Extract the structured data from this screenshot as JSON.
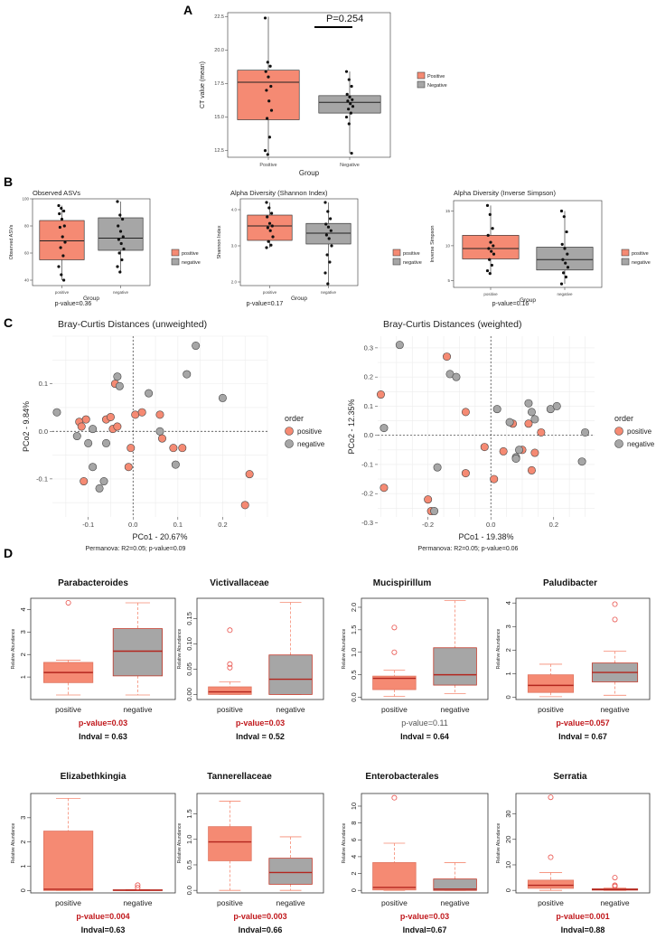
{
  "colors": {
    "positive": "#f58a73",
    "negative": "#a6a6a6",
    "red_text": "#c0181c",
    "median_red": "#b3261e",
    "whisker_red": "#f58a73",
    "outlier_red": "#e8504a",
    "median_dark": "#333333"
  },
  "panel_labels": [
    "A",
    "B",
    "C",
    "D"
  ],
  "chart_data": [
    {
      "id": "A",
      "type": "box",
      "title": "",
      "xlabel": "Group",
      "ylabel": "CT value (mean)",
      "categories": [
        "Positive",
        "Negative"
      ],
      "ylim": [
        12,
        22.8
      ],
      "yticks": [
        12.5,
        15.0,
        17.5,
        20.0,
        22.5
      ],
      "yticklabels": [
        "12.5",
        "15.0",
        "17.5",
        "20.0",
        "22.5"
      ],
      "annotation": "P=0.254",
      "legend": [
        "Positive",
        "Negative"
      ],
      "boxes": [
        {
          "q1": 14.8,
          "median": 17.6,
          "q3": 18.5,
          "lo": 12.2,
          "hi": 22.5,
          "points": [
            22.4,
            19.1,
            18.8,
            18.4,
            18.0,
            17.3,
            17.0,
            16.2,
            15.5,
            14.9,
            13.5,
            12.5,
            12.2
          ]
        },
        {
          "q1": 15.3,
          "median": 16.1,
          "q3": 16.6,
          "lo": 12.3,
          "hi": 18.4,
          "points": [
            18.4,
            17.8,
            17.3,
            16.7,
            16.5,
            16.3,
            16.2,
            16.0,
            15.8,
            15.6,
            15.3,
            15.0,
            14.5,
            12.3
          ]
        }
      ]
    },
    {
      "id": "B1",
      "type": "box",
      "title": "Observed ASVs",
      "xlabel": "Group",
      "ylabel": "Observed ASVs",
      "footer": "p-value=0.36",
      "categories": [
        "positive",
        "negative"
      ],
      "ylim": [
        36,
        100
      ],
      "yticks": [
        40,
        60,
        80,
        100
      ],
      "yticklabels": [
        "40",
        "60",
        "80",
        "100"
      ],
      "legend": [
        "positive",
        "negative"
      ],
      "boxes": [
        {
          "q1": 55,
          "median": 69,
          "q3": 84,
          "lo": 40,
          "hi": 95,
          "points": [
            95,
            93,
            91,
            89,
            85,
            80,
            79,
            72,
            68,
            64,
            58,
            50,
            44,
            40
          ]
        },
        {
          "q1": 62,
          "median": 71,
          "q3": 86,
          "lo": 46,
          "hi": 98,
          "points": [
            98,
            88,
            85,
            80,
            76,
            72,
            70,
            67,
            63,
            60,
            55,
            50,
            46
          ]
        }
      ]
    },
    {
      "id": "B2",
      "type": "box",
      "title": "Alpha Diversity (Shannon Index)",
      "xlabel": "Group",
      "ylabel": "Shannon Index",
      "footer": "p-value=0.17",
      "categories": [
        "positive",
        "negative"
      ],
      "ylim": [
        1.9,
        4.3
      ],
      "yticks": [
        2.0,
        3.0,
        4.0
      ],
      "yticklabels": [
        "2.0",
        "3.0",
        "4.0"
      ],
      "legend": [
        "positive",
        "negative"
      ],
      "boxes": [
        {
          "q1": 3.15,
          "median": 3.55,
          "q3": 3.85,
          "lo": 2.95,
          "hi": 4.2,
          "points": [
            4.2,
            4.05,
            3.9,
            3.8,
            3.62,
            3.55,
            3.5,
            3.42,
            3.25,
            3.12,
            3.02,
            2.95
          ]
        },
        {
          "q1": 3.05,
          "median": 3.35,
          "q3": 3.62,
          "lo": 1.95,
          "hi": 4.2,
          "points": [
            4.2,
            3.95,
            3.75,
            3.6,
            3.52,
            3.42,
            3.3,
            3.2,
            3.0,
            2.75,
            2.55,
            2.25,
            1.95
          ]
        }
      ]
    },
    {
      "id": "B3",
      "type": "box",
      "title": "Alpha Diversity (Inverse Simpson)",
      "xlabel": "Group",
      "ylabel": "Inverse Simpson",
      "footer": "p-value=0.16",
      "categories": [
        "positive",
        "negative"
      ],
      "ylim": [
        4,
        16.5
      ],
      "yticks": [
        5,
        10,
        15
      ],
      "yticklabels": [
        "5",
        "10",
        "15"
      ],
      "legend": [
        "positive",
        "negative"
      ],
      "boxes": [
        {
          "q1": 8.1,
          "median": 9.6,
          "q3": 11.5,
          "lo": 6.0,
          "hi": 15.8,
          "points": [
            15.8,
            14.5,
            12.5,
            11.5,
            10.5,
            10.0,
            9.6,
            9.2,
            8.8,
            8.0,
            7.2,
            6.4,
            6.0
          ]
        },
        {
          "q1": 6.5,
          "median": 8.0,
          "q3": 9.8,
          "lo": 4.5,
          "hi": 15.0,
          "points": [
            15.0,
            14.2,
            12.0,
            10.2,
            9.6,
            8.8,
            8.0,
            7.5,
            6.9,
            6.1,
            5.5,
            4.5
          ]
        }
      ]
    },
    {
      "id": "C1",
      "type": "scatter",
      "title": "Bray-Curtis Distances (unweighted)",
      "xlabel": "PCo1 - 20.67%",
      "ylabel": "PCo2 - 9.84%",
      "footer": "Permanova: R2=0.05; p-value=0.09",
      "xlim": [
        -0.18,
        0.3
      ],
      "ylim": [
        -0.18,
        0.2
      ],
      "xticks": [
        -0.1,
        0.0,
        0.1,
        0.2
      ],
      "xticklabels": [
        "-0.1",
        "0.0",
        "0.1",
        "0.2"
      ],
      "yticks": [
        -0.1,
        0.0,
        0.1
      ],
      "yticklabels": [
        "-0.1",
        "0.0",
        "0.1"
      ],
      "legend_title": "order",
      "legend": [
        "positive",
        "negative"
      ],
      "series": [
        {
          "name": "positive",
          "points": [
            [
              -0.12,
              0.02
            ],
            [
              -0.115,
              0.01
            ],
            [
              -0.105,
              0.025
            ],
            [
              -0.11,
              -0.105
            ],
            [
              -0.06,
              0.025
            ],
            [
              -0.05,
              0.03
            ],
            [
              -0.045,
              0.005
            ],
            [
              -0.035,
              0.01
            ],
            [
              -0.04,
              0.1
            ],
            [
              -0.005,
              -0.035
            ],
            [
              -0.01,
              -0.075
            ],
            [
              0.005,
              0.035
            ],
            [
              0.02,
              0.04
            ],
            [
              0.06,
              0.035
            ],
            [
              0.065,
              -0.015
            ],
            [
              0.09,
              -0.035
            ],
            [
              0.11,
              -0.035
            ],
            [
              0.26,
              -0.09
            ],
            [
              0.25,
              -0.155
            ]
          ]
        },
        {
          "name": "negative",
          "points": [
            [
              -0.17,
              0.04
            ],
            [
              -0.125,
              -0.01
            ],
            [
              -0.1,
              -0.025
            ],
            [
              -0.075,
              -0.12
            ],
            [
              -0.06,
              -0.025
            ],
            [
              -0.09,
              0.005
            ],
            [
              -0.09,
              -0.075
            ],
            [
              -0.065,
              -0.105
            ],
            [
              -0.035,
              0.115
            ],
            [
              -0.03,
              0.095
            ],
            [
              0.035,
              0.08
            ],
            [
              0.06,
              0.0
            ],
            [
              0.095,
              -0.07
            ],
            [
              0.12,
              0.12
            ],
            [
              0.14,
              0.18
            ],
            [
              0.2,
              0.07
            ]
          ]
        }
      ]
    },
    {
      "id": "C2",
      "type": "scatter",
      "title": "Bray-Curtis Distances (weighted)",
      "xlabel": "PCo1 - 19.38%",
      "ylabel": "PCo2 - 12.35%",
      "footer": "Permanova: R2=0.05; p-value=0.06",
      "xlim": [
        -0.36,
        0.33
      ],
      "ylim": [
        -0.28,
        0.34
      ],
      "xticks": [
        -0.2,
        0.0,
        0.2
      ],
      "xticklabels": [
        "-0.2",
        "0.0",
        "0.2"
      ],
      "yticks": [
        -0.3,
        -0.2,
        -0.1,
        0.0,
        0.1,
        0.2,
        0.3
      ],
      "yticklabels": [
        "-0.3",
        "-0.2",
        "-0.1",
        "0.0",
        "0.1",
        "0.2",
        "0.3"
      ],
      "legend_title": "order",
      "legend": [
        "positive",
        "negative"
      ],
      "series": [
        {
          "name": "positive",
          "points": [
            [
              -0.35,
              0.14
            ],
            [
              -0.34,
              -0.18
            ],
            [
              -0.2,
              -0.22
            ],
            [
              -0.19,
              -0.26
            ],
            [
              -0.14,
              0.27
            ],
            [
              -0.08,
              0.08
            ],
            [
              -0.08,
              -0.13
            ],
            [
              -0.02,
              -0.04
            ],
            [
              0.01,
              -0.15
            ],
            [
              0.04,
              -0.055
            ],
            [
              0.07,
              0.04
            ],
            [
              0.1,
              -0.05
            ],
            [
              0.12,
              0.04
            ],
            [
              0.13,
              -0.12
            ],
            [
              0.14,
              -0.06
            ],
            [
              0.16,
              0.01
            ]
          ]
        },
        {
          "name": "negative",
          "points": [
            [
              -0.34,
              0.025
            ],
            [
              -0.29,
              0.31
            ],
            [
              -0.13,
              0.21
            ],
            [
              -0.11,
              0.2
            ],
            [
              -0.17,
              -0.11
            ],
            [
              -0.18,
              -0.26
            ],
            [
              0.02,
              0.09
            ],
            [
              0.06,
              0.045
            ],
            [
              0.08,
              -0.075
            ],
            [
              0.08,
              -0.08
            ],
            [
              0.09,
              -0.05
            ],
            [
              0.12,
              0.11
            ],
            [
              0.13,
              0.08
            ],
            [
              0.14,
              0.055
            ],
            [
              0.19,
              0.09
            ],
            [
              0.21,
              0.1
            ],
            [
              0.29,
              -0.09
            ],
            [
              0.3,
              0.01
            ]
          ]
        }
      ]
    },
    {
      "id": "D1",
      "type": "box",
      "title": "Parabacteroides",
      "ylabel": "Relative Abundance",
      "categories": [
        "positive",
        "negative"
      ],
      "ylim": [
        0,
        4.5
      ],
      "yticks": [
        1,
        2,
        3,
        4
      ],
      "yticklabels": [
        "1",
        "2",
        "3",
        "4"
      ],
      "pvalue": "p-value=0.03",
      "pvalue_red": true,
      "indval": "Indval = 0.63",
      "boxes": [
        {
          "q1": 0.75,
          "median": 1.2,
          "q3": 1.65,
          "lo": 0.2,
          "hi": 1.75,
          "outliers": [
            4.3
          ]
        },
        {
          "q1": 1.05,
          "median": 2.15,
          "q3": 3.15,
          "lo": 0.2,
          "hi": 4.3,
          "outliers": []
        }
      ]
    },
    {
      "id": "D2",
      "type": "box",
      "title": "Victivallaceae",
      "ylabel": "Relative Abundance",
      "categories": [
        "positive",
        "negative"
      ],
      "ylim": [
        -0.01,
        0.19
      ],
      "yticks": [
        0.0,
        0.05,
        0.1,
        0.15
      ],
      "yticklabels": [
        "0.00",
        "0.05",
        "0.10",
        "0.15"
      ],
      "pvalue": "p-value=0.03",
      "pvalue_red": true,
      "indval": "Indval = 0.52",
      "boxes": [
        {
          "q1": 0.0,
          "median": 0.005,
          "q3": 0.015,
          "lo": 0.0,
          "hi": 0.025,
          "outliers": [
            0.06,
            0.053,
            0.127
          ]
        },
        {
          "q1": 0.0,
          "median": 0.03,
          "q3": 0.078,
          "lo": 0.0,
          "hi": 0.182,
          "outliers": []
        }
      ]
    },
    {
      "id": "D3",
      "type": "box",
      "title": "Mucispirillum",
      "ylabel": "Relative Abundance",
      "categories": [
        "positive",
        "negative"
      ],
      "ylim": [
        -0.05,
        2.2
      ],
      "yticks": [
        0.0,
        0.5,
        1.0,
        1.5,
        2.0
      ],
      "yticklabels": [
        "0.0",
        "0.5",
        "1.0",
        "1.5",
        "2.0"
      ],
      "pvalue": "p-value=0.11",
      "pvalue_red": false,
      "indval": "Indval = 0.64",
      "boxes": [
        {
          "q1": 0.17,
          "median": 0.42,
          "q3": 0.47,
          "lo": 0.02,
          "hi": 0.6,
          "outliers": [
            1.0,
            1.55
          ]
        },
        {
          "q1": 0.27,
          "median": 0.5,
          "q3": 1.1,
          "lo": 0.08,
          "hi": 2.15,
          "outliers": []
        }
      ]
    },
    {
      "id": "D4",
      "type": "box",
      "title": "Paludibacter",
      "ylabel": "Relative Abundance",
      "categories": [
        "positive",
        "negative"
      ],
      "ylim": [
        -0.1,
        4.2
      ],
      "yticks": [
        0,
        1,
        2,
        3,
        4
      ],
      "yticklabels": [
        "0",
        "1",
        "2",
        "3",
        "4"
      ],
      "pvalue": "p-value=0.057",
      "pvalue_red": true,
      "indval": "Indval = 0.67",
      "boxes": [
        {
          "q1": 0.2,
          "median": 0.5,
          "q3": 0.95,
          "lo": 0.02,
          "hi": 1.4,
          "outliers": []
        },
        {
          "q1": 0.65,
          "median": 1.05,
          "q3": 1.45,
          "lo": 0.08,
          "hi": 1.95,
          "outliers": [
            3.3,
            3.95
          ]
        }
      ]
    },
    {
      "id": "D5",
      "type": "box",
      "title": "Elizabethkingia",
      "ylabel": "Relative Abundance",
      "categories": [
        "positive",
        "negative"
      ],
      "ylim": [
        -0.1,
        4.0
      ],
      "yticks": [
        0,
        1,
        2,
        3
      ],
      "yticklabels": [
        "0",
        "1",
        "2",
        "3"
      ],
      "pvalue": "p-value=0.004",
      "pvalue_red": true,
      "indval": "Indval=0.63",
      "boxes": [
        {
          "q1": 0.0,
          "median": 0.05,
          "q3": 2.45,
          "lo": 0.0,
          "hi": 3.8,
          "outliers": []
        },
        {
          "q1": 0.0,
          "median": 0.01,
          "q3": 0.03,
          "lo": 0.0,
          "hi": 0.04,
          "outliers": [
            0.12,
            0.22
          ]
        }
      ]
    },
    {
      "id": "D6",
      "type": "box",
      "title": "Tannerellaceae",
      "ylabel": "Relative Abundance",
      "categories": [
        "positive",
        "negative"
      ],
      "ylim": [
        -0.05,
        1.9
      ],
      "yticks": [
        0.0,
        0.5,
        1.0,
        1.5
      ],
      "yticklabels": [
        "0.0",
        "0.5",
        "1.0",
        "1.5"
      ],
      "pvalue": "p-value=0.003",
      "pvalue_red": true,
      "indval": "Indval=0.66",
      "boxes": [
        {
          "q1": 0.58,
          "median": 0.95,
          "q3": 1.25,
          "lo": 0.0,
          "hi": 1.75,
          "outliers": []
        },
        {
          "q1": 0.12,
          "median": 0.35,
          "q3": 0.63,
          "lo": 0.0,
          "hi": 1.05,
          "outliers": []
        }
      ]
    },
    {
      "id": "D7",
      "type": "box",
      "title": "Enterobacterales",
      "ylabel": "Relative Abundance",
      "categories": [
        "positive",
        "negative"
      ],
      "ylim": [
        -0.3,
        11.5
      ],
      "yticks": [
        0,
        2,
        4,
        6,
        8,
        10
      ],
      "yticklabels": [
        "0",
        "2",
        "4",
        "6",
        "8",
        "10"
      ],
      "pvalue": "p-value=0.03",
      "pvalue_red": true,
      "indval": "Indval=0.67",
      "boxes": [
        {
          "q1": 0.05,
          "median": 0.35,
          "q3": 3.3,
          "lo": 0.0,
          "hi": 5.6,
          "outliers": [
            11.0
          ]
        },
        {
          "q1": 0.0,
          "median": 0.15,
          "q3": 1.35,
          "lo": 0.0,
          "hi": 3.3,
          "outliers": []
        }
      ]
    },
    {
      "id": "D8",
      "type": "box",
      "title": "Serratia",
      "ylabel": "Relative Abundance",
      "categories": [
        "positive",
        "negative"
      ],
      "ylim": [
        -1,
        38
      ],
      "yticks": [
        0,
        10,
        20,
        30
      ],
      "yticklabels": [
        "0",
        "10",
        "20",
        "30"
      ],
      "pvalue": "p-value=0.001",
      "pvalue_red": true,
      "indval": "Indval=0.88",
      "boxes": [
        {
          "q1": 0.8,
          "median": 2.0,
          "q3": 4.0,
          "lo": 0.0,
          "hi": 7.0,
          "outliers": [
            13.0,
            36.5
          ]
        },
        {
          "q1": 0.1,
          "median": 0.3,
          "q3": 0.6,
          "lo": 0.0,
          "hi": 1.0,
          "outliers": [
            2.0,
            1.6,
            5.0
          ]
        }
      ]
    }
  ]
}
